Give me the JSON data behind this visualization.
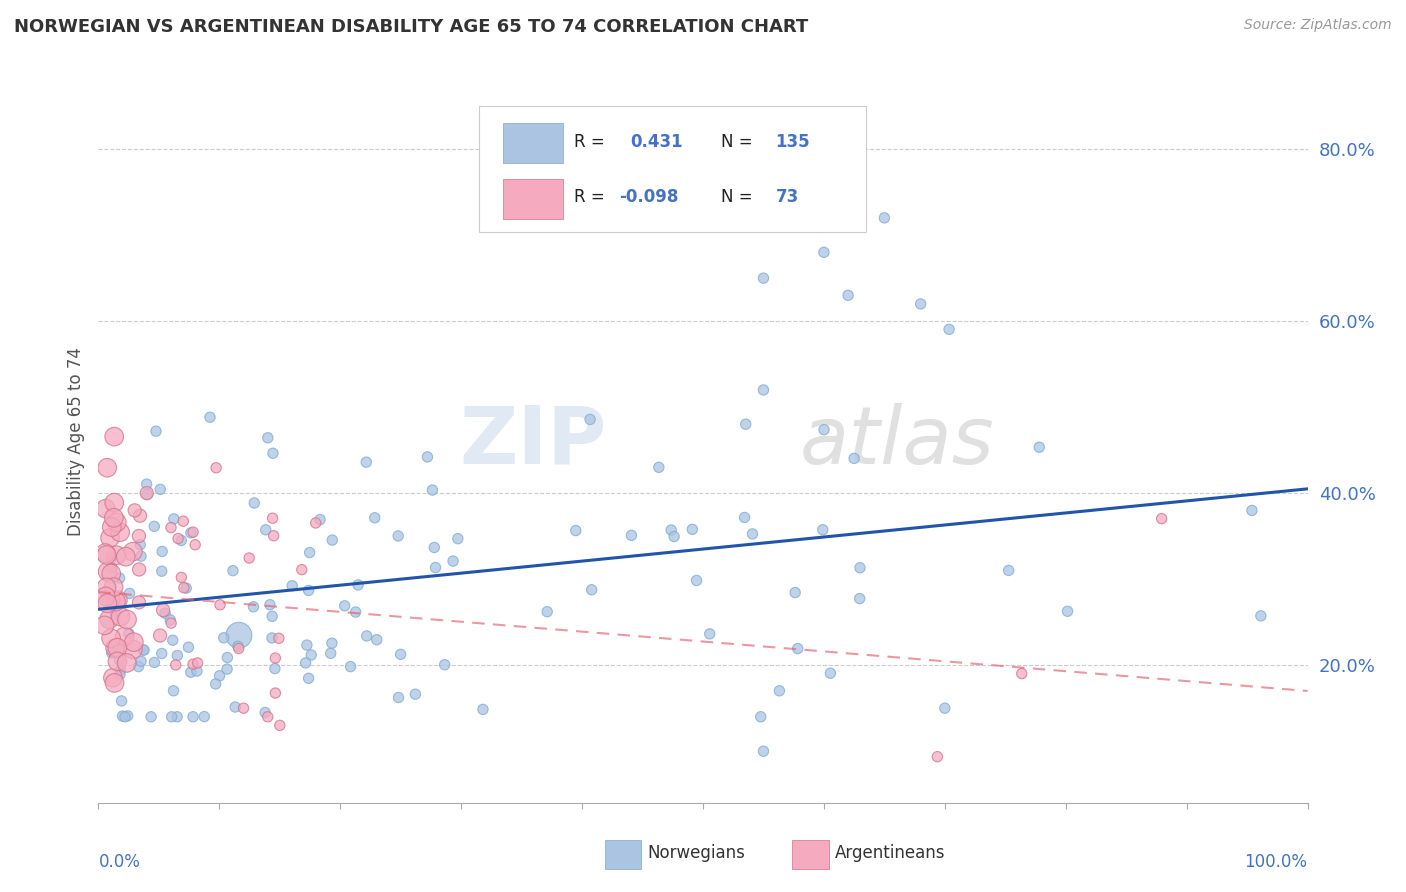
{
  "title": "NORWEGIAN VS ARGENTINEAN DISABILITY AGE 65 TO 74 CORRELATION CHART",
  "source": "Source: ZipAtlas.com",
  "ylabel": "Disability Age 65 to 74",
  "xlim": [
    0.0,
    1.0
  ],
  "ylim": [
    0.04,
    0.88
  ],
  "yticks": [
    0.2,
    0.4,
    0.6,
    0.8
  ],
  "ytick_labels": [
    "20.0%",
    "40.0%",
    "60.0%",
    "80.0%"
  ],
  "norwegian_R": 0.431,
  "norwegian_N": 135,
  "argentinean_R": -0.098,
  "argentinean_N": 73,
  "norwegian_color": "#aac4e2",
  "argentinean_color": "#f5aabf",
  "norwegian_line_color": "#2255aa",
  "argentinean_line_color": "#e06070",
  "watermark_zip": "ZIP",
  "watermark_atlas": "atlas",
  "background_color": "#ffffff",
  "grid_color": "#cccccc",
  "tick_color": "#4472c4",
  "label_color": "#555555",
  "legend_text_color": "#222222",
  "legend_value_color": "#4472c4"
}
